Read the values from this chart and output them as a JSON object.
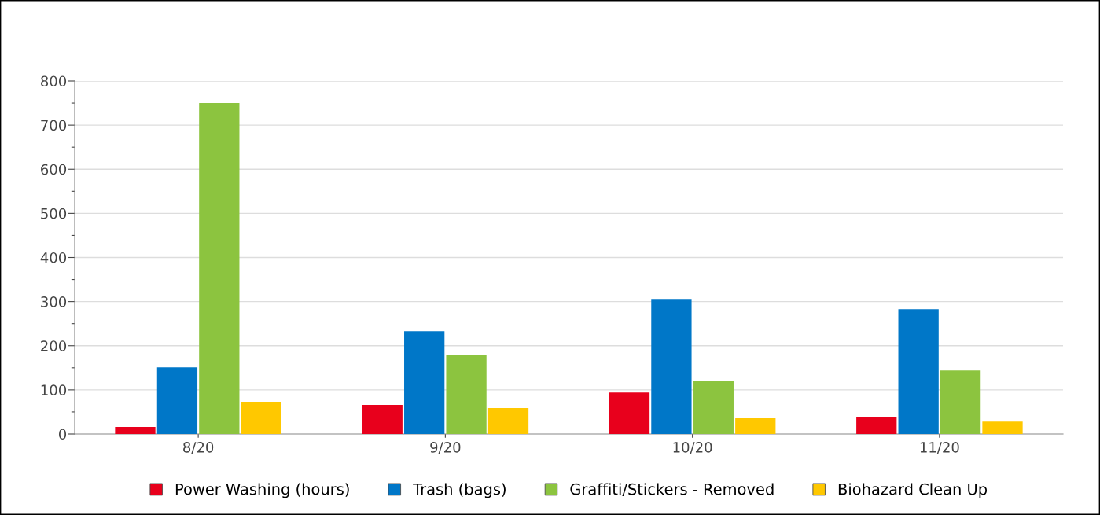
{
  "chart_data": {
    "type": "bar",
    "categories": [
      "8/20",
      "9/20",
      "10/20",
      "11/20"
    ],
    "series": [
      {
        "name": "Power Washing (hours)",
        "color": "#e8001c",
        "values": [
          16,
          66,
          94,
          39
        ]
      },
      {
        "name": "Trash (bags)",
        "color": "#0077c8",
        "values": [
          151,
          233,
          306,
          283
        ]
      },
      {
        "name": "Graffiti/Stickers - Removed",
        "color": "#8cc43f",
        "values": [
          750,
          178,
          121,
          144
        ]
      },
      {
        "name": "Biohazard Clean Up",
        "color": "#ffc800",
        "values": [
          73,
          59,
          36,
          28
        ]
      }
    ],
    "ylim": [
      0,
      800
    ],
    "yticks": [
      0,
      {
        "value": 50,
        "label": null
      },
      100,
      {
        "value": 150,
        "label": null
      },
      200,
      {
        "value": 250,
        "label": null
      },
      300,
      {
        "value": 350,
        "label": null
      },
      400,
      {
        "value": 450,
        "label": null
      },
      500,
      {
        "value": 550,
        "label": null
      },
      600,
      {
        "value": 650,
        "label": null
      },
      700,
      {
        "value": 750,
        "label": null
      },
      800
    ],
    "grid": "y",
    "legend": "bottom"
  }
}
